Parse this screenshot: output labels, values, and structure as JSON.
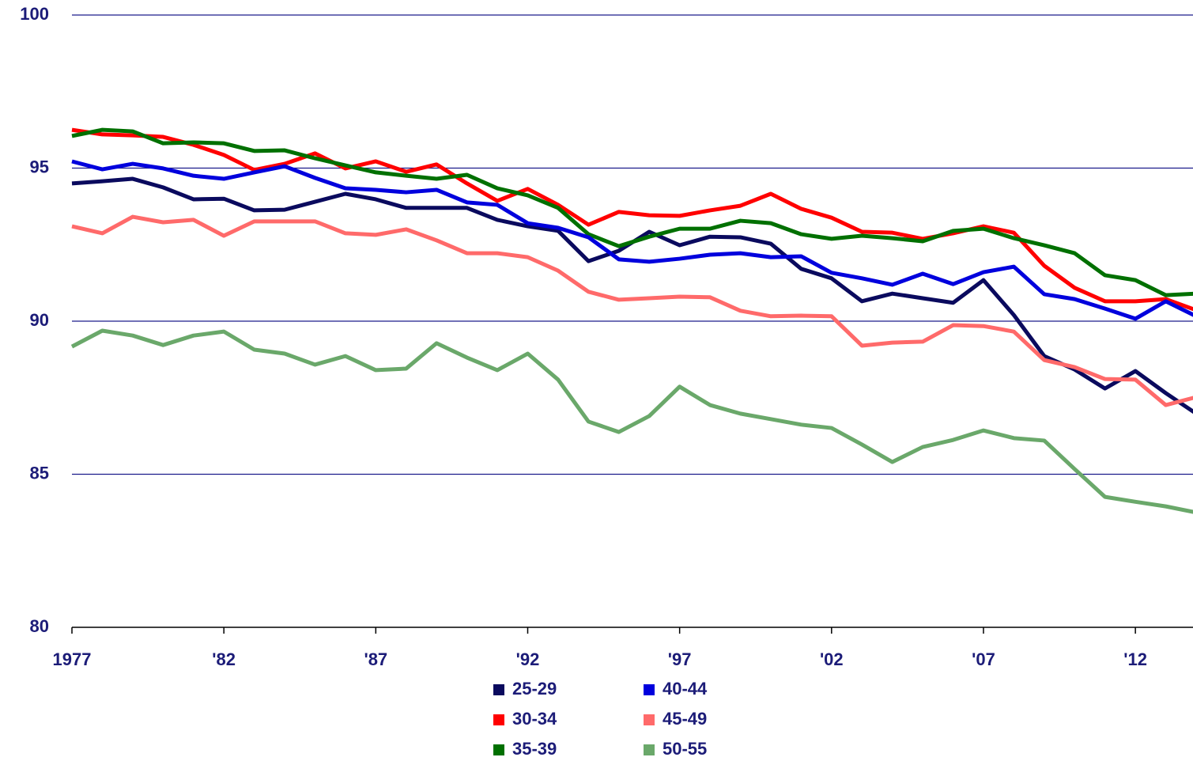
{
  "chart_data": {
    "type": "line",
    "x": [
      1977,
      1978,
      1979,
      1980,
      1981,
      1982,
      1983,
      1984,
      1985,
      1986,
      1987,
      1988,
      1989,
      1990,
      1991,
      1992,
      1993,
      1994,
      1995,
      1996,
      1997,
      1998,
      1999,
      2000,
      2001,
      2002,
      2003,
      2004,
      2005,
      2006,
      2007,
      2008,
      2009,
      2010,
      2011,
      2012,
      2013,
      2014
    ],
    "xlim": [
      1977,
      2014
    ],
    "xticks": [
      1977,
      {
        "value": 1982,
        "label": "'82"
      },
      {
        "value": 1987,
        "label": "'87"
      },
      {
        "value": 1992,
        "label": "'92"
      },
      {
        "value": 1997,
        "label": "'97"
      },
      {
        "value": 2002,
        "label": "'02"
      },
      {
        "value": 2007,
        "label": "'07"
      },
      {
        "value": 2012,
        "label": "'12"
      }
    ],
    "ylim": [
      80,
      100
    ],
    "yticks": [
      80,
      85,
      90,
      95,
      100
    ],
    "grid": true,
    "legend": "bottom",
    "series": [
      {
        "name": "25-29",
        "color": "#0a0a5e",
        "values": [
          94.5,
          94.57,
          94.65,
          94.37,
          93.98,
          94.0,
          93.62,
          93.64,
          93.9,
          94.16,
          93.98,
          93.7,
          93.7,
          93.7,
          93.31,
          93.1,
          92.95,
          91.96,
          92.3,
          92.92,
          92.48,
          92.76,
          92.74,
          92.53,
          91.71,
          91.4,
          90.65,
          90.9,
          90.75,
          90.6,
          91.34,
          90.2,
          88.86,
          88.42,
          87.8,
          88.37,
          87.65,
          86.98
        ]
      },
      {
        "name": "30-34",
        "color": "#ff0000",
        "values": [
          96.25,
          96.1,
          96.07,
          96.02,
          95.76,
          95.43,
          94.94,
          95.14,
          95.48,
          94.99,
          95.22,
          94.88,
          95.12,
          94.5,
          93.93,
          94.32,
          93.8,
          93.15,
          93.57,
          93.46,
          93.44,
          93.62,
          93.77,
          94.16,
          93.67,
          93.38,
          92.92,
          92.89,
          92.69,
          92.87,
          93.1,
          92.89,
          91.81,
          91.09,
          90.65,
          90.65,
          90.72,
          90.36
        ]
      },
      {
        "name": "35-39",
        "color": "#007000",
        "values": [
          96.05,
          96.25,
          96.2,
          95.81,
          95.84,
          95.81,
          95.56,
          95.58,
          95.32,
          95.09,
          94.86,
          94.75,
          94.65,
          94.78,
          94.34,
          94.11,
          93.7,
          92.84,
          92.45,
          92.76,
          93.02,
          93.02,
          93.28,
          93.2,
          92.84,
          92.69,
          92.79,
          92.71,
          92.61,
          92.95,
          93.02,
          92.71,
          92.48,
          92.22,
          91.5,
          91.34,
          90.85,
          90.9
        ]
      },
      {
        "name": "40-44",
        "color": "#0000dd",
        "values": [
          95.22,
          94.96,
          95.14,
          94.99,
          94.75,
          94.65,
          94.86,
          95.06,
          94.68,
          94.34,
          94.29,
          94.21,
          94.29,
          93.88,
          93.8,
          93.2,
          93.05,
          92.74,
          92.02,
          91.94,
          92.04,
          92.17,
          92.22,
          92.09,
          92.12,
          91.58,
          91.4,
          91.19,
          91.55,
          91.21,
          91.6,
          91.78,
          90.88,
          90.72,
          90.41,
          90.08,
          90.65,
          90.16
        ]
      },
      {
        "name": "45-49",
        "color": "#ff6a6a",
        "values": [
          93.1,
          92.87,
          93.41,
          93.23,
          93.31,
          92.79,
          93.26,
          93.26,
          93.26,
          92.87,
          92.82,
          93.0,
          92.64,
          92.22,
          92.22,
          92.09,
          91.65,
          90.96,
          90.7,
          90.75,
          90.8,
          90.78,
          90.34,
          90.16,
          90.18,
          90.16,
          89.2,
          89.3,
          89.33,
          89.87,
          89.84,
          89.66,
          88.73,
          88.5,
          88.11,
          88.09,
          87.26,
          87.52
        ]
      },
      {
        "name": "50-55",
        "color": "#6aa86a",
        "values": [
          89.17,
          89.69,
          89.53,
          89.22,
          89.53,
          89.66,
          89.07,
          88.94,
          88.58,
          88.86,
          88.4,
          88.45,
          89.28,
          88.81,
          88.4,
          88.94,
          88.09,
          86.72,
          86.38,
          86.9,
          87.86,
          87.26,
          86.98,
          86.8,
          86.62,
          86.51,
          85.97,
          85.4,
          85.89,
          86.12,
          86.43,
          86.18,
          86.1,
          85.17,
          84.26,
          84.1,
          83.95,
          83.75
        ]
      }
    ]
  }
}
